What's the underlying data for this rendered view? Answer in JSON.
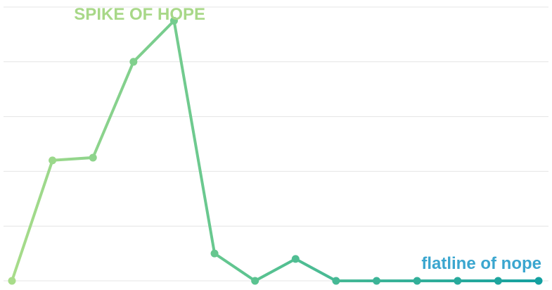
{
  "chart_data": {
    "type": "line",
    "x": [
      1,
      2,
      3,
      4,
      5,
      6,
      7,
      8,
      9,
      10,
      11,
      12,
      13,
      14
    ],
    "series": [
      {
        "values": [
          0,
          4.4,
          4.5,
          8.0,
          9.5,
          1.0,
          0,
          0.8,
          0,
          0,
          0,
          0,
          0,
          0
        ]
      }
    ],
    "ylim": [
      0,
      10
    ],
    "grid": true,
    "gridlines": [
      0,
      2,
      4,
      6,
      8,
      10
    ],
    "title": "",
    "xlabel": "",
    "ylabel": "",
    "annotations": [
      {
        "text": "SPIKE OF HOPE",
        "color": "#a8d888",
        "anchor_x": 4.5,
        "position": "top"
      },
      {
        "text": "flatline of nope",
        "color": "#3aa6cf",
        "anchor_x": 14,
        "position": "above-end"
      }
    ],
    "line_gradient": {
      "start_color": "#a8dc8a",
      "mid_color": "#5cc490",
      "end_color": "#14a0a0"
    },
    "grid_color": "#e4e4e4"
  }
}
